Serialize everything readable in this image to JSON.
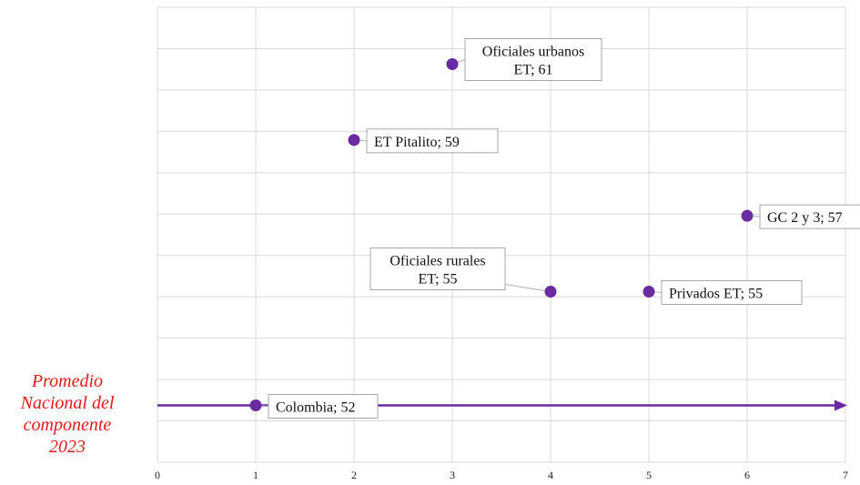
{
  "chart_data": {
    "type": "scatter",
    "x_ticks": [
      0,
      1,
      2,
      3,
      4,
      5,
      6,
      7
    ],
    "xlim": [
      0,
      7
    ],
    "ylim": [
      50.5,
      62.5
    ],
    "grid": true,
    "accent_color": "#6a2aa0",
    "points": [
      {
        "x": 1,
        "y": 52,
        "label_lines": [
          "Colombia; 52"
        ]
      },
      {
        "x": 2,
        "y": 59,
        "label_lines": [
          "ET Pitalito; 59"
        ]
      },
      {
        "x": 3,
        "y": 61,
        "label_lines": [
          "Oficiales urbanos",
          "ET; 61"
        ]
      },
      {
        "x": 4,
        "y": 55,
        "label_lines": [
          "Oficiales rurales",
          "ET; 55"
        ]
      },
      {
        "x": 5,
        "y": 55,
        "label_lines": [
          "Privados ET; 55"
        ]
      },
      {
        "x": 6,
        "y": 57,
        "label_lines": [
          "GC 2 y 3; 57"
        ]
      }
    ],
    "reference_line": {
      "y": 52,
      "arrow": true
    },
    "side_label_lines": [
      "Promedio",
      "Nacional del",
      "componente",
      "2023"
    ]
  }
}
